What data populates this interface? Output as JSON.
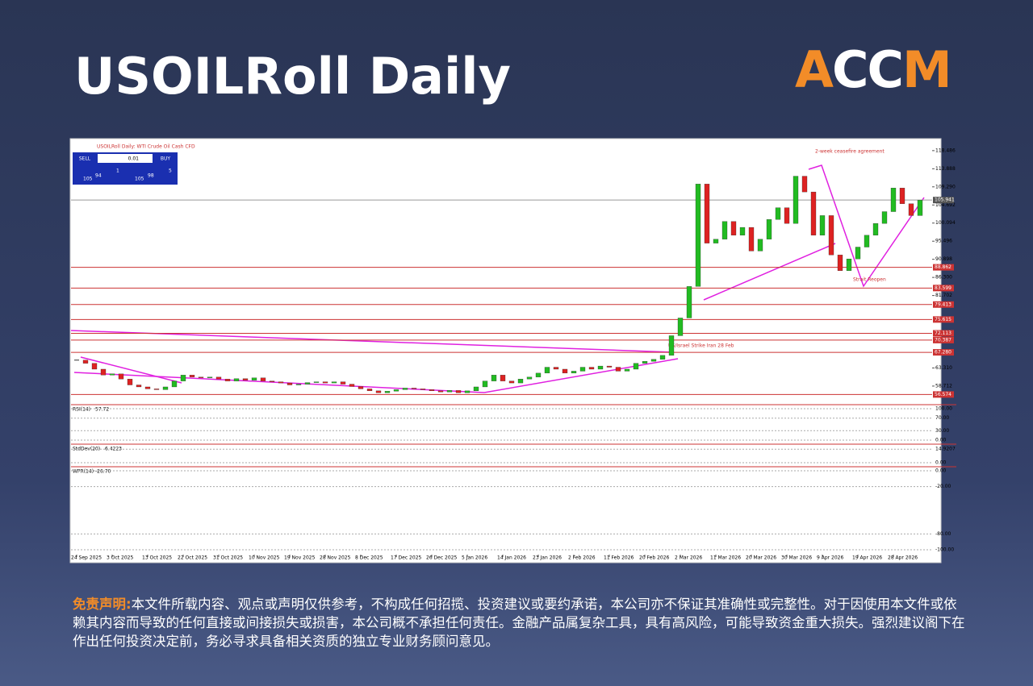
{
  "header": {
    "title": "USOILRoll Daily"
  },
  "logo": [
    "A",
    "CC",
    "M"
  ],
  "trade_panel": {
    "sell_label": "SELL",
    "buy_label": "BUY",
    "lot": "0.01",
    "sell": [
      "105",
      "94",
      "1"
    ],
    "buy": [
      "105",
      "98",
      "5"
    ]
  },
  "disclaimer": {
    "label": "免责声明:",
    "text": "本文件所载内容、观点或声明仅供参考，不构成任何招揽、投资建议或要约承诺，本公司亦不保证其准确性或完整性。对于因使用本文件或依赖其内容而导致的任何直接或间接损失或损害，本公司概不承担任何责任。金融产品属复杂工具，具有高风险，可能导致资金重大损失。强烈建议阁下在作出任何投资决定前，务必寻求具备相关资质的独立专业财务顾问意见。"
  },
  "chart_data": {
    "type": "candlestick",
    "title": "USOILRoll Daily: WTI Crude Oil Cash CFD",
    "close": [
      65.3,
      64.5,
      63.0,
      61.5,
      61.8,
      60.5,
      59.0,
      58.5,
      58.0,
      57.8,
      58.5,
      60.0,
      61.5,
      61.0,
      60.8,
      61.0,
      60.5,
      60.0,
      60.6,
      60.2,
      60.8,
      60.0,
      59.8,
      59.5,
      59.0,
      59.2,
      59.6,
      59.8,
      59.5,
      59.8,
      59.2,
      58.6,
      58.0,
      57.5,
      57.0,
      57.4,
      57.8,
      58.2,
      58.0,
      57.8,
      57.5,
      57.2,
      57.6,
      57.0,
      57.5,
      58.5,
      60.0,
      61.5,
      60.0,
      59.5,
      60.5,
      61.0,
      62.0,
      63.5,
      63.0,
      62.0,
      62.5,
      63.5,
      63.0,
      63.8,
      63.5,
      62.5,
      63.0,
      64.5,
      65.0,
      65.5,
      66.5,
      71.5,
      76.0,
      84.0,
      110.0,
      95.0,
      96.0,
      100.5,
      97.0,
      99.0,
      93.0,
      96.0,
      101.0,
      104.0,
      100.0,
      112.0,
      108.0,
      97.0,
      102.0,
      92.0,
      88.0,
      91.0,
      94.0,
      97.0,
      100.0,
      103.0,
      109.0,
      105.0,
      102.0,
      105.9
    ],
    "x_labels": [
      "24 Sep 2025",
      "3 Oct 2025",
      "13 Oct 2025",
      "22 Oct 2025",
      "31 Oct 2025",
      "10 Nov 2025",
      "19 Nov 2025",
      "28 Nov 2025",
      "8 Dec 2025",
      "17 Dec 2025",
      "26 Dec 2025",
      "5 Jan 2026",
      "14 Jan 2026",
      "23 Jan 2026",
      "2 Feb 2026",
      "11 Feb 2026",
      "20 Feb 2026",
      "2 Mar 2026",
      "11 Mar 2026",
      "20 Mar 2026",
      "30 Mar 2026",
      "9 Apr 2026",
      "19 Apr 2026",
      "28 Apr 2026"
    ],
    "ylim": [
      54.4,
      120.3
    ],
    "yticks": [
      118.486,
      113.888,
      {
        "value": 109.29,
        "label": "109.290"
      },
      104.692,
      100.094,
      95.496,
      90.898,
      {
        "value": 86.3,
        "label": "86.300"
      },
      81.702,
      {
        "value": 63.31,
        "label": "63.310"
      },
      58.712
    ],
    "levels": [
      88.862,
      83.599,
      79.413,
      75.615,
      72.113,
      70.387,
      {
        "value": 67.28,
        "label": "67.280"
      },
      56.574
    ],
    "current": 105.941,
    "up_color": "#22bb22",
    "down_color": "#dd2222",
    "level_color": "#cc3333",
    "annotations": [
      "2-week ceasefire agreement",
      "Strait Reopen",
      "US/Israel Strike Iran 28 Feb"
    ],
    "indicators": [
      {
        "name": "RSI(14)",
        "value": 57.72,
        "ylim": [
          0,
          100
        ],
        "yticks": [
          {
            "value": 100,
            "label": "100.00"
          },
          {
            "value": 70,
            "label": "70.00"
          },
          {
            "value": 30,
            "label": "30.00"
          },
          {
            "value": 0,
            "label": "0.00"
          }
        ]
      },
      {
        "name": "StdDev(20)",
        "value": 6.4223,
        "ylim": [
          0,
          16
        ],
        "yticks": [
          14.9207,
          {
            "value": 0,
            "label": "0.00"
          }
        ]
      },
      {
        "name": "WPR(14)",
        "value": -26.7,
        "value_label": "-26.70",
        "ylim": [
          -100,
          0
        ],
        "yticks": [
          {
            "value": 0,
            "label": "0.00"
          },
          {
            "value": -20,
            "label": "-20.00"
          },
          {
            "value": -80,
            "label": "-80.00"
          },
          {
            "value": -100,
            "label": "-100.00"
          }
        ]
      }
    ]
  }
}
